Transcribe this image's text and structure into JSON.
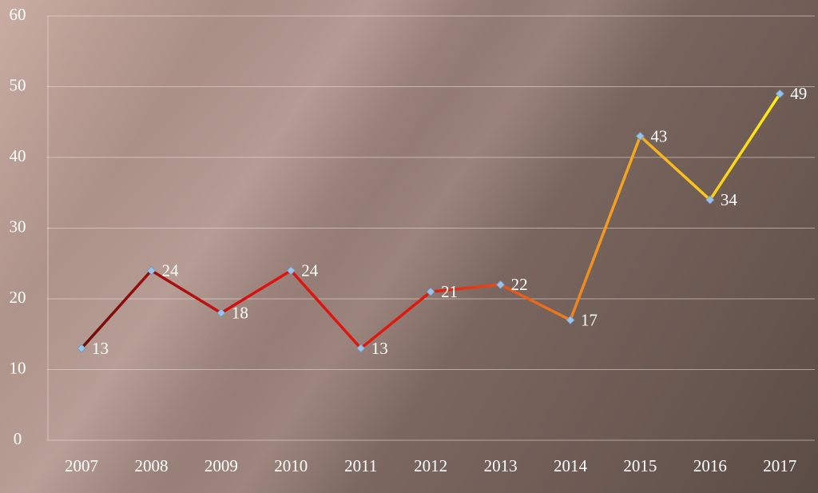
{
  "chart_data": {
    "type": "line",
    "categories": [
      "2007",
      "2008",
      "2009",
      "2010",
      "2011",
      "2012",
      "2013",
      "2014",
      "2015",
      "2016",
      "2017"
    ],
    "values": [
      13,
      24,
      18,
      24,
      13,
      21,
      22,
      17,
      43,
      34,
      49
    ],
    "line_gradient": [
      "#6e0c0c",
      "#dd1111",
      "#e01a10",
      "#f29a22",
      "#ffee10"
    ],
    "marker_color": "#9cc2e8",
    "ylim": [
      0,
      60
    ],
    "yticks": [
      0,
      10,
      20,
      30,
      40,
      50,
      60
    ],
    "grid": true
  }
}
